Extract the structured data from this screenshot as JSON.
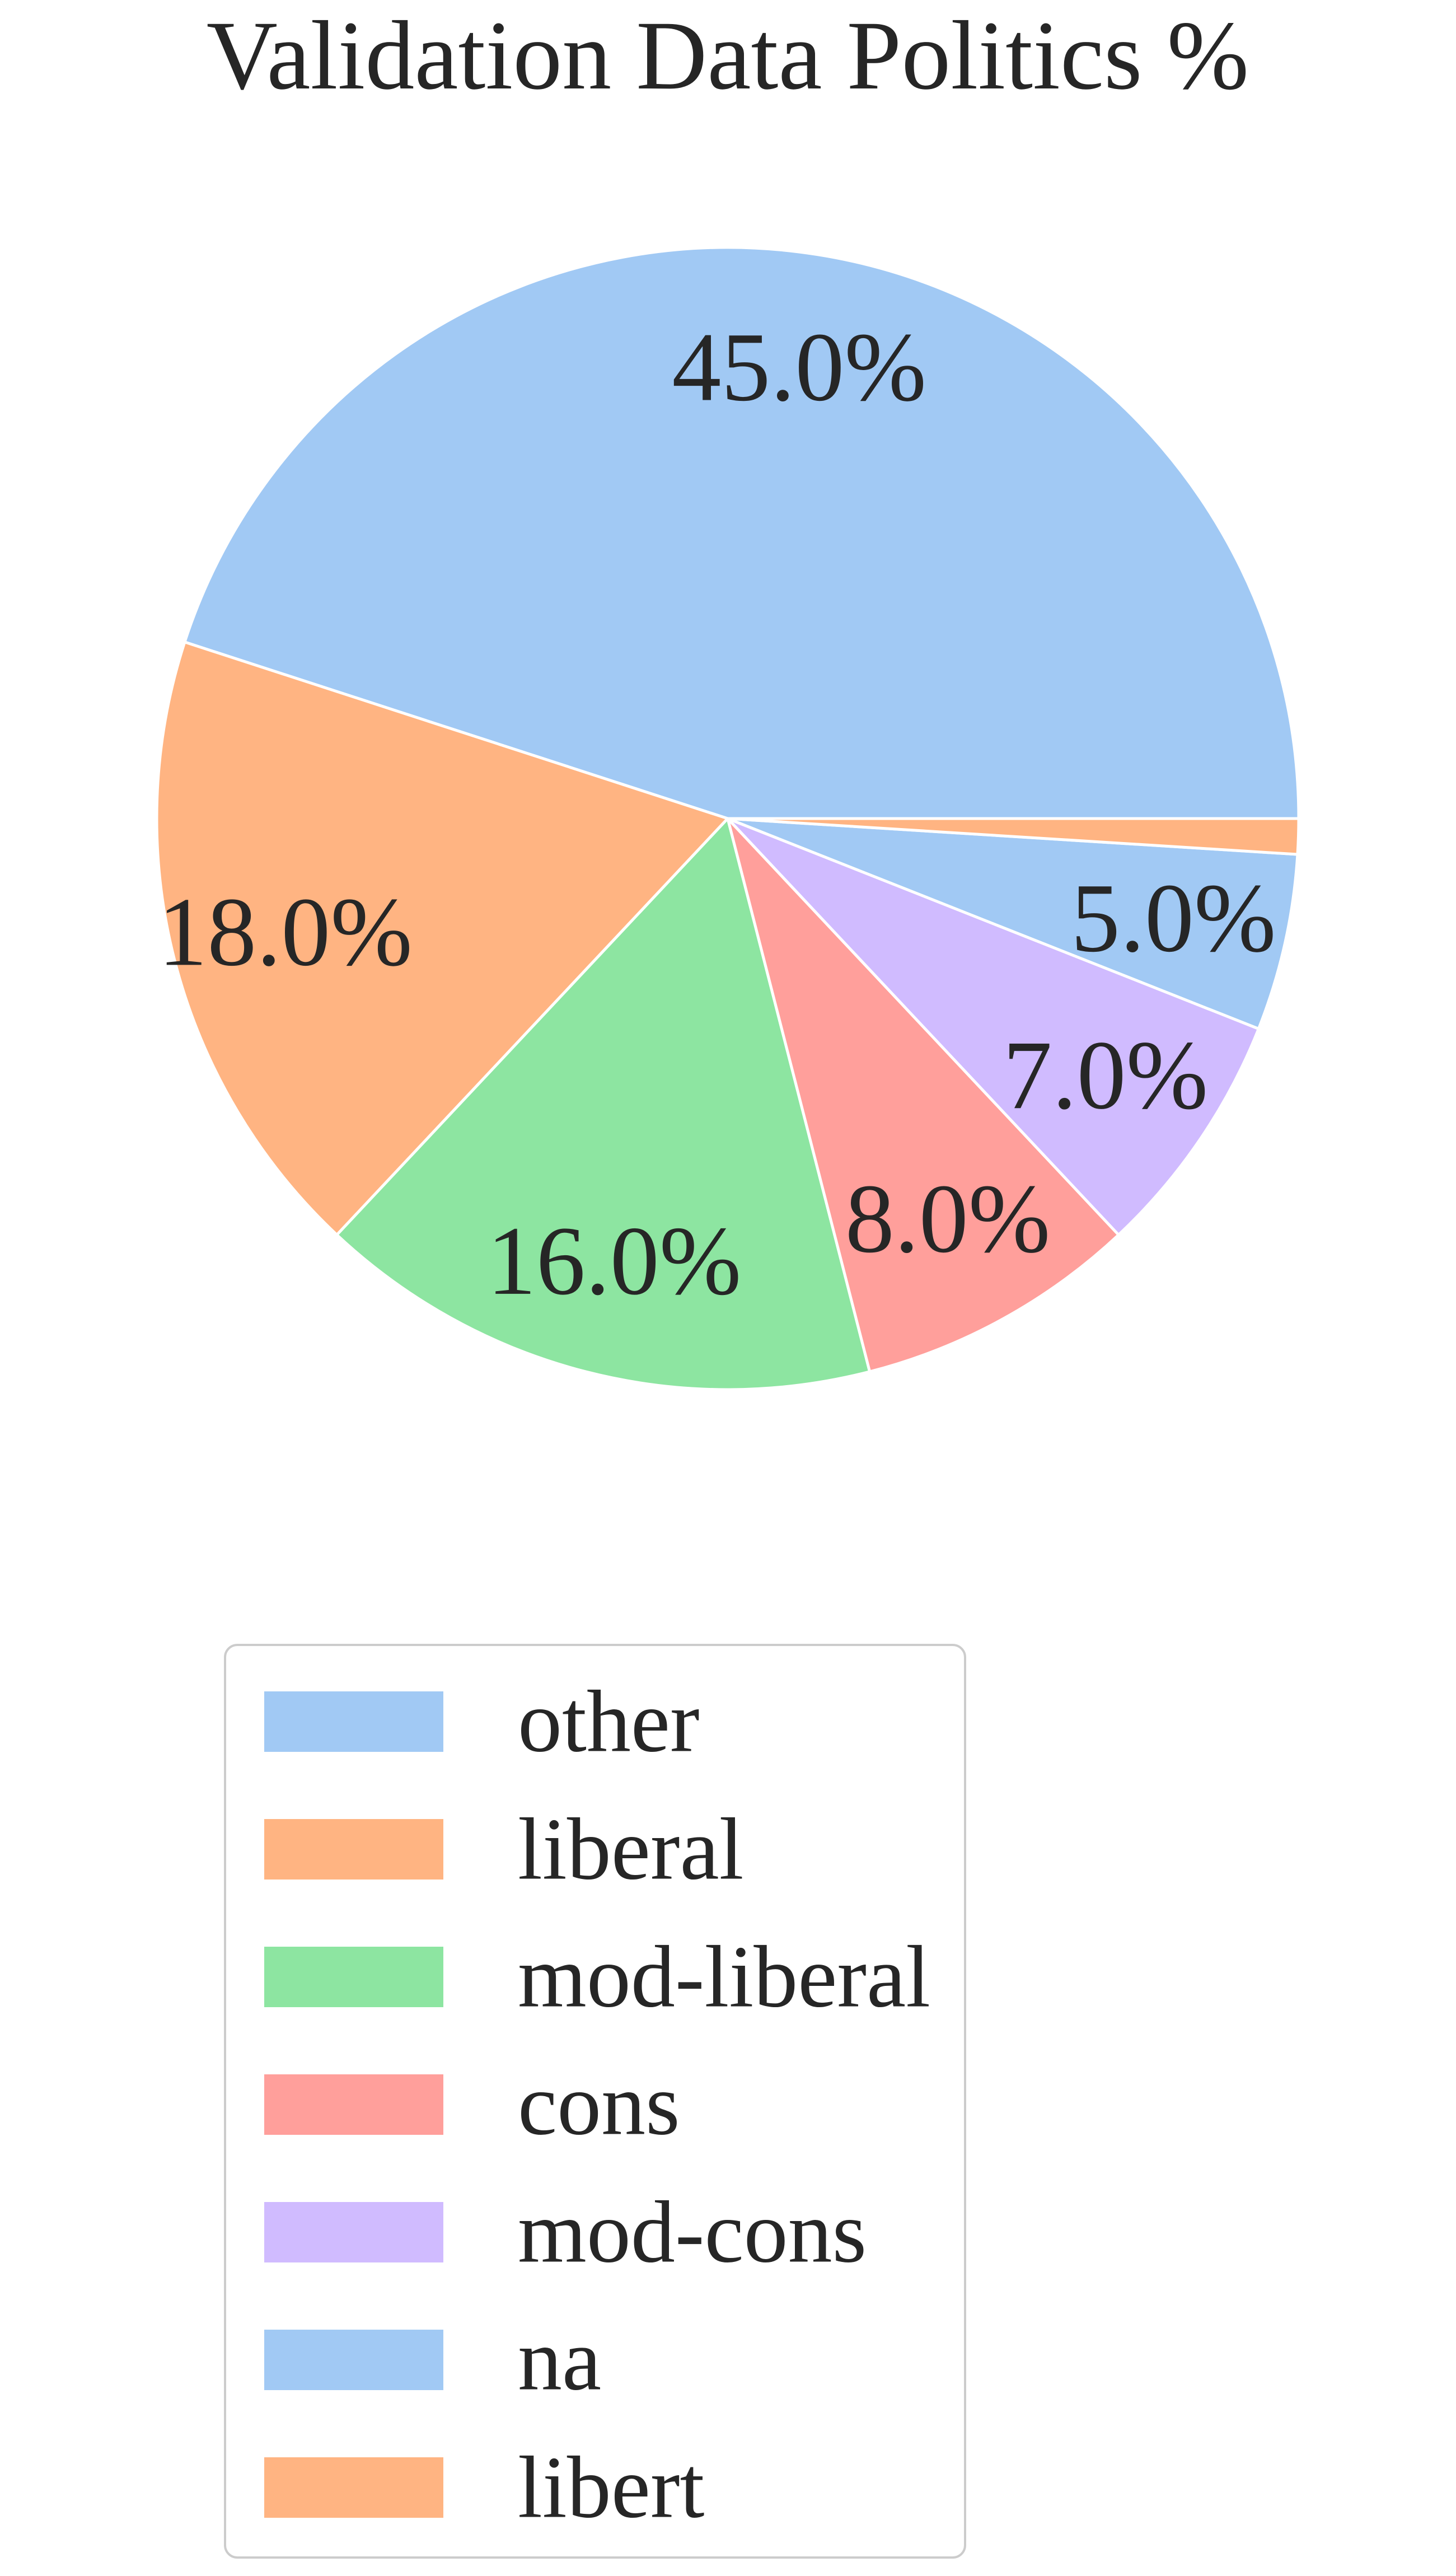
{
  "chart_data": {
    "type": "pie",
    "title": "Validation Data Politics %",
    "categories": [
      "other",
      "liberal",
      "mod-liberal",
      "cons",
      "mod-cons",
      "na",
      "libert"
    ],
    "values": [
      45.0,
      18.0,
      16.0,
      8.0,
      7.0,
      5.0,
      1.0
    ],
    "labels": [
      "45.0%",
      "18.0%",
      "16.0%",
      "8.0%",
      "7.0%",
      "5.0%",
      ""
    ],
    "colors": [
      "#a1c9f4",
      "#ffb482",
      "#8de5a1",
      "#ff9f9b",
      "#d0bbff",
      "#a1c9f4",
      "#ffb482"
    ],
    "start_angle_deg": 0,
    "direction": "counterclockwise",
    "legend": {
      "position": "bottom",
      "entries": [
        "other",
        "liberal",
        "mod-liberal",
        "cons",
        "mod-cons",
        "na",
        "libert"
      ]
    }
  }
}
